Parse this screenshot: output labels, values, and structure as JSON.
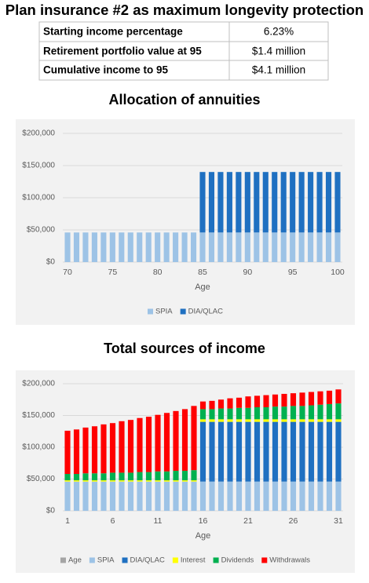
{
  "title": "Plan insurance #2 as maximum longevity protection",
  "table": {
    "rows": [
      [
        "Starting income percentage",
        "6.23%"
      ],
      [
        "Retirement portfolio value at 95",
        "$1.4 million"
      ],
      [
        "Cumulative income to 95",
        "$4.1 million"
      ]
    ]
  },
  "chart_data": [
    {
      "type": "bar",
      "stacked": true,
      "title": "Allocation of annuities",
      "x_label": "Age",
      "categories": [
        70,
        null,
        null,
        null,
        null,
        75,
        null,
        null,
        null,
        null,
        80,
        null,
        null,
        null,
        null,
        85,
        null,
        null,
        null,
        null,
        90,
        null,
        null,
        null,
        null,
        95,
        null,
        null,
        null,
        null,
        100
      ],
      "series": [
        {
          "name": "SPIA",
          "color": "#9dc3e6",
          "values": [
            46000,
            46000,
            46000,
            46000,
            46000,
            46000,
            46000,
            46000,
            46000,
            46000,
            46000,
            46000,
            46000,
            46000,
            46000,
            46000,
            46000,
            46000,
            46000,
            46000,
            46000,
            46000,
            46000,
            46000,
            46000,
            46000,
            46000,
            46000,
            46000,
            46000,
            46000
          ]
        },
        {
          "name": "DIA/QLAC",
          "color": "#1f70c1",
          "values": [
            0,
            0,
            0,
            0,
            0,
            0,
            0,
            0,
            0,
            0,
            0,
            0,
            0,
            0,
            0,
            94000,
            94000,
            94000,
            94000,
            94000,
            94000,
            94000,
            94000,
            94000,
            94000,
            94000,
            94000,
            94000,
            94000,
            94000,
            94000
          ]
        }
      ],
      "ylim": [
        0,
        200000
      ],
      "yticks": [
        {
          "value": 0,
          "label": "$0"
        },
        {
          "value": 50000,
          "label": "$50,000"
        },
        {
          "value": 100000,
          "label": "$100,000"
        },
        {
          "value": 150000,
          "label": "$150,000"
        },
        {
          "value": 200000,
          "label": "$200,000"
        }
      ],
      "grid": true,
      "legend": "bottom"
    },
    {
      "type": "bar",
      "stacked": true,
      "title": "Total sources of income",
      "x_label": "Age",
      "categories": [
        1,
        null,
        null,
        null,
        null,
        6,
        null,
        null,
        null,
        null,
        11,
        null,
        null,
        null,
        null,
        16,
        null,
        null,
        null,
        null,
        21,
        null,
        null,
        null,
        null,
        26,
        null,
        null,
        null,
        null,
        31
      ],
      "series": [
        {
          "name": "Age",
          "color": "#a5a5a5",
          "values": [
            null,
            null,
            null,
            null,
            null,
            null,
            null,
            null,
            null,
            null,
            null,
            null,
            null,
            null,
            null,
            null,
            null,
            null,
            null,
            null,
            null,
            null,
            null,
            null,
            null,
            null,
            null,
            null,
            null,
            null,
            null
          ]
        },
        {
          "name": "SPIA",
          "color": "#9dc3e6",
          "values": [
            46000,
            46000,
            46000,
            46000,
            46000,
            46000,
            46000,
            46000,
            46000,
            46000,
            46000,
            46000,
            46000,
            46000,
            46000,
            46000,
            46000,
            46000,
            46000,
            46000,
            46000,
            46000,
            46000,
            46000,
            46000,
            46000,
            46000,
            46000,
            46000,
            46000,
            46000
          ]
        },
        {
          "name": "DIA/QLAC",
          "color": "#1f70c1",
          "values": [
            0,
            0,
            0,
            0,
            0,
            0,
            0,
            0,
            0,
            0,
            0,
            0,
            0,
            0,
            0,
            94000,
            94000,
            94000,
            94000,
            94000,
            94000,
            94000,
            94000,
            94000,
            94000,
            94000,
            94000,
            94000,
            94000,
            94000,
            94000
          ]
        },
        {
          "name": "Interest",
          "color": "#ffff00",
          "values": [
            2000,
            2000,
            2000,
            2000,
            2000,
            2000,
            2000,
            2000,
            2000,
            2000,
            2000,
            2000,
            2000,
            2000,
            2000,
            4000,
            4000,
            4000,
            4000,
            4000,
            4000,
            4000,
            4000,
            4000,
            4000,
            4000,
            4000,
            4000,
            4000,
            4000,
            4000
          ]
        },
        {
          "name": "Dividends",
          "color": "#00b050",
          "values": [
            10000,
            10000,
            11000,
            11000,
            11000,
            12000,
            12000,
            12000,
            13000,
            13000,
            14000,
            14000,
            15000,
            15000,
            16000,
            16000,
            16000,
            17000,
            17000,
            18000,
            18000,
            19000,
            19000,
            20000,
            20000,
            21000,
            21000,
            22000,
            23000,
            24000,
            25000
          ]
        },
        {
          "name": "Withdrawals",
          "color": "#ff0000",
          "values": [
            68000,
            70000,
            72000,
            74000,
            77000,
            78000,
            81000,
            83000,
            85000,
            87000,
            89000,
            92000,
            94000,
            97000,
            101000,
            12000,
            13000,
            14000,
            16000,
            16000,
            18000,
            18000,
            19000,
            19000,
            20000,
            20000,
            21000,
            21000,
            21000,
            21000,
            22000
          ]
        }
      ],
      "ylim": [
        0,
        200000
      ],
      "yticks": [
        {
          "value": 0,
          "label": "$0"
        },
        {
          "value": 50000,
          "label": "$50,000"
        },
        {
          "value": 100000,
          "label": "$100,000"
        },
        {
          "value": 150000,
          "label": "$150,000"
        },
        {
          "value": 200000,
          "label": "$200,000"
        }
      ],
      "grid": true,
      "legend": "bottom"
    }
  ]
}
